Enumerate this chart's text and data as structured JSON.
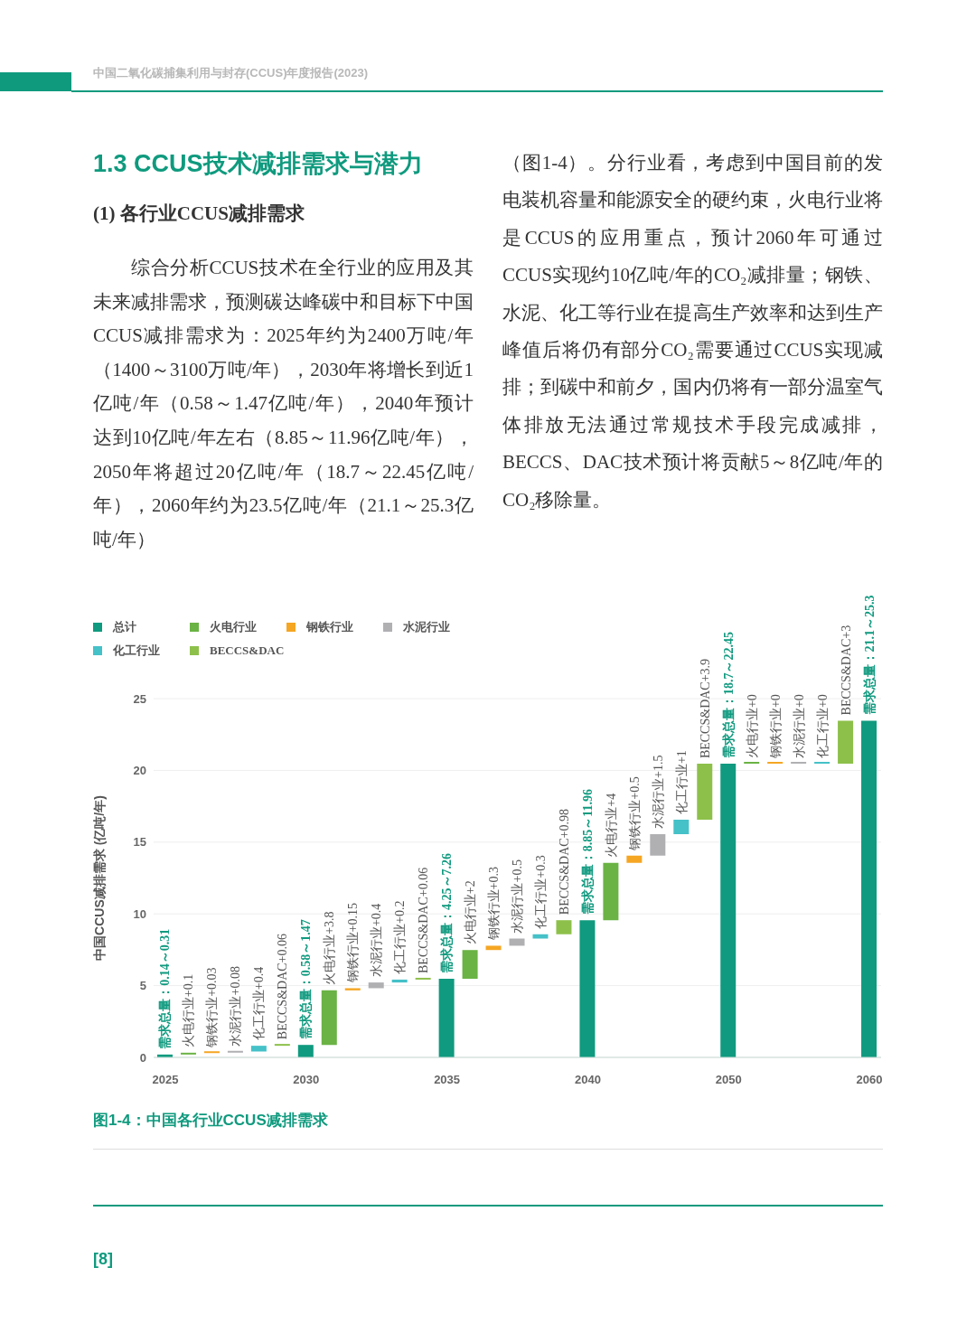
{
  "chart_data": {
    "type": "bar",
    "title": "图1-4：中国各行业CCUS减排需求",
    "ylabel": "中国CCUS减排需求 (亿吨/年)",
    "annotations": [
      "中国二氧化碳捕集利用与封存(CCUS)年度报告(2023)",
      "1.3  CCUS技术减排需求与潜力",
      "(1)  各行业CCUS减排需求",
      "综合分析CCUS技术在全行业的应用及其未来减排需求，预测碳达峰碳中和目标下中国CCUS减排需求为：2025年约为2400万吨/年（1400～3100万吨/年），2030年将增长到近1亿吨/年（0.58～1.47亿吨/年），2040年预计达到10亿吨/年左右（8.85～11.96亿吨/年），2050年将超过20亿吨/年（18.7～22.45亿吨/年），2060年约为23.5亿吨/年（21.1～25.3亿吨/年）",
      "（图1-4）。分行业看，考虑到中国目前的发电装机容量和能源安全的硬约束，火电行业将是CCUS的应用重点，预计2060年可通过CCUS实现约10亿吨/年的CO₂减排量；钢铁、水泥、化工等行业在提高生产效率和达到生产峰值后将仍有部分CO₂需要通过CCUS实现减排；到碳中和前夕，国内仍将有一部分温室气体排放无法通过常规技术手段完成减排，BECCS、DAC技术预计将贡献5～8亿吨/年的CO₂移除量。",
      "[8]"
    ],
    "categories": [
      "2025",
      null,
      null,
      null,
      null,
      null,
      "2030",
      null,
      null,
      null,
      null,
      null,
      "2035",
      null,
      null,
      null,
      null,
      null,
      "2040",
      null,
      null,
      null,
      null,
      null,
      "2050",
      null,
      null,
      null,
      null,
      null,
      "2060"
    ],
    "ylim": [
      0,
      25
    ],
    "yticks": [
      0,
      5,
      10,
      15,
      20,
      25
    ],
    "grid": "y",
    "legend": "top left",
    "series": [
      {
        "name": "总计",
        "color": "#109a7f",
        "values": [
          0.2,
          null,
          null,
          null,
          null,
          null,
          0.87,
          null,
          null,
          null,
          null,
          null,
          5.48,
          null,
          null,
          null,
          null,
          null,
          9.56,
          null,
          null,
          null,
          null,
          null,
          20.46,
          null,
          null,
          null,
          null,
          null,
          23.46
        ],
        "base": [
          0,
          null,
          null,
          null,
          null,
          null,
          0,
          null,
          null,
          null,
          null,
          null,
          0,
          null,
          null,
          null,
          null,
          null,
          0,
          null,
          null,
          null,
          null,
          null,
          0,
          null,
          null,
          null,
          null,
          null,
          0
        ],
        "value_labels": [
          "需求总量：0.14～0.31",
          null,
          null,
          null,
          null,
          null,
          "需求总量：0.58～1.47",
          null,
          null,
          null,
          null,
          null,
          "需求总量：4.25～7.26",
          null,
          null,
          null,
          null,
          null,
          "需求总量：8.85～11.96",
          null,
          null,
          null,
          null,
          null,
          "需求总量：18.7～22.45",
          null,
          null,
          null,
          null,
          null,
          "需求总量：21.1～25.3"
        ]
      },
      {
        "name": "火电行业",
        "color": "#6ab344",
        "values": [
          null,
          0.1,
          null,
          null,
          null,
          null,
          null,
          3.8,
          null,
          null,
          null,
          null,
          null,
          2,
          null,
          null,
          null,
          null,
          null,
          4,
          null,
          null,
          null,
          null,
          null,
          0,
          null,
          null,
          null,
          null,
          null
        ],
        "base": [
          null,
          0.2,
          null,
          null,
          null,
          null,
          null,
          0.87,
          null,
          null,
          null,
          null,
          null,
          5.48,
          null,
          null,
          null,
          null,
          null,
          9.56,
          null,
          null,
          null,
          null,
          null,
          20.46,
          null,
          null,
          null,
          null,
          null
        ],
        "value_labels": [
          null,
          "火电行业+0.1",
          null,
          null,
          null,
          null,
          null,
          "火电行业+3.8",
          null,
          null,
          null,
          null,
          null,
          "火电行业+2",
          null,
          null,
          null,
          null,
          null,
          "火电行业+4",
          null,
          null,
          null,
          null,
          null,
          "火电行业+0",
          null,
          null,
          null,
          null,
          null
        ]
      },
      {
        "name": "钢铁行业",
        "color": "#f5a623",
        "values": [
          null,
          null,
          0.03,
          null,
          null,
          null,
          null,
          null,
          0.15,
          null,
          null,
          null,
          null,
          null,
          0.3,
          null,
          null,
          null,
          null,
          null,
          0.5,
          null,
          null,
          null,
          null,
          null,
          0,
          null,
          null,
          null,
          null
        ],
        "base": [
          null,
          null,
          0.3,
          null,
          null,
          null,
          null,
          null,
          4.67,
          null,
          null,
          null,
          null,
          null,
          7.48,
          null,
          null,
          null,
          null,
          null,
          13.56,
          null,
          null,
          null,
          null,
          null,
          20.46,
          null,
          null,
          null,
          null
        ],
        "value_labels": [
          null,
          null,
          "钢铁行业+0.03",
          null,
          null,
          null,
          null,
          null,
          "钢铁行业+0.15",
          null,
          null,
          null,
          null,
          null,
          "钢铁行业+0.3",
          null,
          null,
          null,
          null,
          null,
          "钢铁行业+0.5",
          null,
          null,
          null,
          null,
          null,
          "钢铁行业+0",
          null,
          null,
          null,
          null
        ]
      },
      {
        "name": "水泥行业",
        "color": "#b0b0b3",
        "values": [
          null,
          null,
          null,
          0.08,
          null,
          null,
          null,
          null,
          null,
          0.4,
          null,
          null,
          null,
          null,
          null,
          0.5,
          null,
          null,
          null,
          null,
          null,
          1.5,
          null,
          null,
          null,
          null,
          null,
          0,
          null,
          null,
          null
        ],
        "base": [
          null,
          null,
          null,
          0.33,
          null,
          null,
          null,
          null,
          null,
          4.82,
          null,
          null,
          null,
          null,
          null,
          7.78,
          null,
          null,
          null,
          null,
          null,
          14.06,
          null,
          null,
          null,
          null,
          null,
          20.46,
          null,
          null,
          null
        ],
        "value_labels": [
          null,
          null,
          null,
          "水泥行业+0.08",
          null,
          null,
          null,
          null,
          null,
          "水泥行业+0.4",
          null,
          null,
          null,
          null,
          null,
          "水泥行业+0.5",
          null,
          null,
          null,
          null,
          null,
          "水泥行业+1.5",
          null,
          null,
          null,
          null,
          null,
          "水泥行业+0",
          null,
          null,
          null
        ]
      },
      {
        "name": "化工行业",
        "color": "#45c1c8",
        "values": [
          null,
          null,
          null,
          null,
          0.4,
          null,
          null,
          null,
          null,
          null,
          0.2,
          null,
          null,
          null,
          null,
          null,
          0.3,
          null,
          null,
          null,
          null,
          null,
          1,
          null,
          null,
          null,
          null,
          null,
          0,
          null,
          null
        ],
        "base": [
          null,
          null,
          null,
          null,
          0.41,
          null,
          null,
          null,
          null,
          null,
          5.22,
          null,
          null,
          null,
          null,
          null,
          8.28,
          null,
          null,
          null,
          null,
          null,
          15.56,
          null,
          null,
          null,
          null,
          null,
          20.46,
          null,
          null
        ],
        "value_labels": [
          null,
          null,
          null,
          null,
          "化工行业+0.4",
          null,
          null,
          null,
          null,
          null,
          "化工行业+0.2",
          null,
          null,
          null,
          null,
          null,
          "化工行业+0.3",
          null,
          null,
          null,
          null,
          null,
          "化工行业+1",
          null,
          null,
          null,
          null,
          null,
          "化工行业+0",
          null,
          null
        ]
      },
      {
        "name": "BECCS&DAC",
        "color": "#8dc04a",
        "values": [
          null,
          null,
          null,
          null,
          null,
          0.06,
          null,
          null,
          null,
          null,
          null,
          0.06,
          null,
          null,
          null,
          null,
          null,
          0.98,
          null,
          null,
          null,
          null,
          null,
          3.9,
          null,
          null,
          null,
          null,
          null,
          3,
          null
        ],
        "base": [
          null,
          null,
          null,
          null,
          null,
          0.81,
          null,
          null,
          null,
          null,
          null,
          5.42,
          null,
          null,
          null,
          null,
          null,
          8.58,
          null,
          null,
          null,
          null,
          null,
          16.56,
          null,
          null,
          null,
          null,
          null,
          20.46,
          null
        ],
        "value_labels": [
          null,
          null,
          null,
          null,
          null,
          "BECCS&DAC+0.06",
          null,
          null,
          null,
          null,
          null,
          "BECCS&DAC+0.06",
          null,
          null,
          null,
          null,
          null,
          "BECCS&DAC+0.98",
          null,
          null,
          null,
          null,
          null,
          "BECCS&DAC+3.9",
          null,
          null,
          null,
          null,
          null,
          "BECCS&DAC+3",
          null
        ]
      }
    ]
  }
}
